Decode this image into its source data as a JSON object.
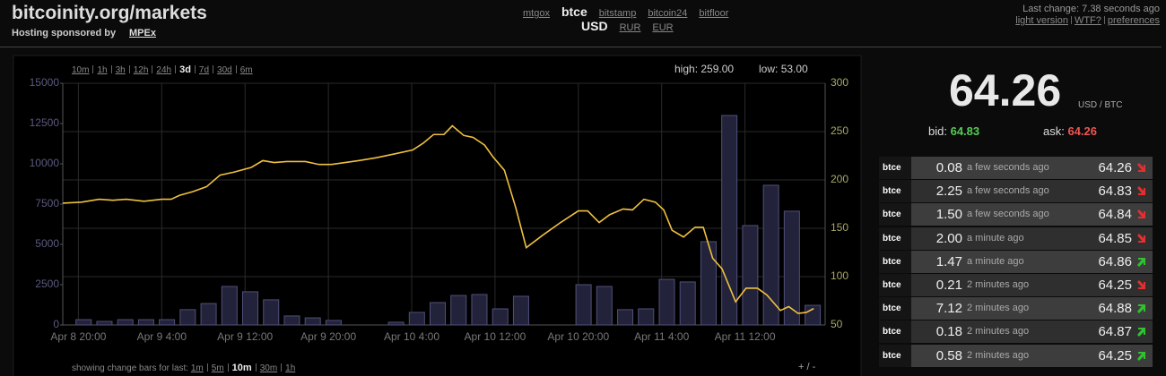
{
  "header": {
    "title": "bitcoinity.org/markets",
    "sponsor_label": "Hosting sponsored by",
    "sponsor": "MPEx"
  },
  "exchanges": {
    "items": [
      "mtgox",
      "btce",
      "bitstamp",
      "bitcoin24",
      "bitfloor"
    ],
    "selected": 1
  },
  "currencies": {
    "items": [
      "USD",
      "RUR",
      "EUR"
    ],
    "selected": 0
  },
  "status": {
    "text": "Last change: 7.38 seconds ago",
    "links": [
      "light version",
      "WTF?",
      "preferences"
    ]
  },
  "ranges": {
    "items": [
      "10m",
      "1h",
      "3h",
      "12h",
      "24h",
      "3d",
      "7d",
      "30d",
      "6m"
    ],
    "selected": 5
  },
  "high": {
    "label": "high:",
    "value": "259.00"
  },
  "low": {
    "label": "low:",
    "value": "53.00"
  },
  "change_bars": {
    "label": "showing change bars for last:",
    "items": [
      "1m",
      "5m",
      "10m",
      "30m",
      "1h"
    ],
    "selected": 2
  },
  "zoom": "+ / -",
  "ticker": {
    "price": "64.26",
    "unit": "USD / BTC",
    "bid_label": "bid:",
    "bid": "64.83",
    "ask_label": "ask:",
    "ask": "64.26"
  },
  "trades": [
    {
      "exchange": "btce",
      "amount": "0.08",
      "time": "a few seconds ago",
      "price": "64.26",
      "direction": "down"
    },
    {
      "exchange": "btce",
      "amount": "2.25",
      "time": "a few seconds ago",
      "price": "64.83",
      "direction": "down"
    },
    {
      "exchange": "btce",
      "amount": "1.50",
      "time": "a few seconds ago",
      "price": "64.84",
      "direction": "down"
    },
    {
      "exchange": "btce",
      "amount": "2.00",
      "time": "a minute ago",
      "price": "64.85",
      "direction": "down"
    },
    {
      "exchange": "btce",
      "amount": "1.47",
      "time": "a minute ago",
      "price": "64.86",
      "direction": "up"
    },
    {
      "exchange": "btce",
      "amount": "0.21",
      "time": "2 minutes ago",
      "price": "64.25",
      "direction": "down"
    },
    {
      "exchange": "btce",
      "amount": "7.12",
      "time": "2 minutes ago",
      "price": "64.88",
      "direction": "up"
    },
    {
      "exchange": "btce",
      "amount": "0.18",
      "time": "2 minutes ago",
      "price": "64.87",
      "direction": "up"
    },
    {
      "exchange": "btce",
      "amount": "0.58",
      "time": "2 minutes ago",
      "price": "64.25",
      "direction": "up"
    }
  ],
  "chart_data": {
    "type": "combo",
    "xlim": [
      -1.5,
      71.7
    ],
    "xticks": [
      {
        "value": 0,
        "label": "Apr 8 20:00"
      },
      {
        "value": 8,
        "label": "Apr 9 4:00"
      },
      {
        "value": 16,
        "label": "Apr 9 12:00"
      },
      {
        "value": 24,
        "label": "Apr 9 20:00"
      },
      {
        "value": 32,
        "label": "Apr 10 4:00"
      },
      {
        "value": 40,
        "label": "Apr 10 12:00"
      },
      {
        "value": 48,
        "label": "Apr 10 20:00"
      },
      {
        "value": 56,
        "label": "Apr 11 4:00"
      },
      {
        "value": 64,
        "label": "Apr 11 12:00"
      }
    ],
    "ylim": [
      0,
      15000
    ],
    "yticks": [
      0,
      2500,
      5000,
      7500,
      10000,
      12500,
      15000
    ],
    "y2lim": [
      50,
      300
    ],
    "y2ticks": [
      50,
      100,
      150,
      200,
      250,
      300
    ],
    "grid": true,
    "series": [
      {
        "type": "bar",
        "axis": "y",
        "color": "#22223a",
        "x": [
          0.5,
          2.5,
          4.5,
          6.5,
          8.5,
          10.5,
          12.5,
          14.5,
          16.5,
          18.5,
          20.5,
          22.5,
          24.5,
          26.5,
          28.5,
          30.5,
          32.5,
          34.5,
          36.5,
          38.5,
          40.5,
          42.5,
          44.5,
          46.5,
          48.5,
          50.5,
          52.5,
          54.5,
          56.5,
          58.5,
          60.5,
          62.5,
          64.5,
          66.5,
          68.5,
          70.5
        ],
        "values": [
          330,
          220,
          330,
          330,
          330,
          950,
          1330,
          2390,
          2060,
          1560,
          560,
          440,
          280,
          0,
          0,
          170,
          780,
          1390,
          1830,
          1890,
          1000,
          1780,
          0,
          0,
          2500,
          2390,
          950,
          1000,
          2830,
          2670,
          5170,
          13000,
          6170,
          8670,
          7060,
          1220
        ]
      },
      {
        "type": "line",
        "axis": "y2",
        "color": "#f0c040",
        "x": [
          -1.5,
          0.3,
          2.0,
          3.3,
          4.6,
          6.3,
          8.0,
          8.9,
          9.7,
          11.0,
          12.3,
          13.6,
          14.9,
          16.6,
          17.7,
          18.8,
          20.0,
          21.8,
          23.1,
          24.3,
          25.6,
          26.9,
          28.6,
          30.4,
          32.1,
          33.1,
          34.1,
          35.1,
          35.9,
          37.0,
          37.9,
          39.0,
          39.8,
          40.9,
          42.0,
          43.0,
          44.6,
          46.3,
          48.0,
          48.9,
          50.0,
          51.0,
          52.3,
          53.2,
          54.3,
          55.4,
          56.2,
          57.0,
          58.1,
          59.2,
          60.0,
          60.9,
          61.8,
          63.1,
          64.1,
          65.2,
          66.1,
          67.4,
          68.2,
          69.1,
          69.9,
          70.6
        ],
        "values": [
          176,
          177,
          180,
          179,
          180,
          178,
          180,
          180,
          184,
          188,
          193,
          205,
          208,
          213,
          220,
          218,
          219,
          219,
          216,
          216,
          218,
          220,
          223,
          227,
          231,
          238,
          247,
          247,
          256,
          246,
          244,
          236,
          224,
          210,
          171,
          130,
          143,
          156,
          168,
          168,
          156,
          164,
          170,
          169,
          180,
          177,
          169,
          148,
          141,
          151,
          151,
          119,
          108,
          74,
          88,
          88,
          81,
          65,
          69,
          62,
          63,
          67
        ]
      }
    ]
  }
}
